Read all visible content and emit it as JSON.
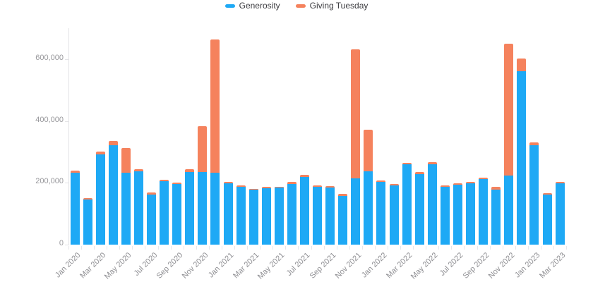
{
  "chart_data": {
    "type": "bar",
    "stacked": true,
    "title": "",
    "categories": [
      "Jan 2020",
      "Feb 2020",
      "Mar 2020",
      "Apr 2020",
      "May 2020",
      "Jun 2020",
      "Jul 2020",
      "Aug 2020",
      "Sep 2020",
      "Oct 2020",
      "Nov 2020",
      "Dec 2020",
      "Jan 2021",
      "Feb 2021",
      "Mar 2021",
      "Apr 2021",
      "May 2021",
      "Jun 2021",
      "Jul 2021",
      "Aug 2021",
      "Sep 2021",
      "Oct 2021",
      "Nov 2021",
      "Dec 2021",
      "Jan 2022",
      "Feb 2022",
      "Mar 2022",
      "Apr 2022",
      "May 2022",
      "Jun 2022",
      "Jul 2022",
      "Aug 2022",
      "Sep 2022",
      "Oct 2022",
      "Nov 2022",
      "Dec 2022",
      "Jan 2023",
      "Feb 2023",
      "Mar 2023"
    ],
    "series": [
      {
        "name": "Generosity",
        "color": "#1EA9F5",
        "values": [
          232000,
          146000,
          293000,
          322000,
          232000,
          238000,
          163000,
          205000,
          196000,
          234000,
          236000,
          232000,
          198000,
          187000,
          177000,
          182000,
          184000,
          197000,
          220000,
          186000,
          184000,
          157000,
          214000,
          237000,
          203000,
          192000,
          259000,
          229000,
          260000,
          186000,
          193000,
          199000,
          212000,
          179000,
          224000,
          560000,
          322000,
          161000,
          199000
        ]
      },
      {
        "name": "Giving Tuesday",
        "color": "#F5825D",
        "values": [
          8000,
          5000,
          7000,
          13000,
          80000,
          6000,
          5000,
          5000,
          5000,
          10000,
          147000,
          432000,
          6000,
          5000,
          4000,
          4000,
          4000,
          6000,
          5000,
          5000,
          5000,
          8000,
          418000,
          134000,
          5000,
          5000,
          6000,
          7000,
          7000,
          5000,
          5000,
          5000,
          5000,
          8000,
          426000,
          42000,
          8000,
          5000,
          5000
        ]
      }
    ],
    "x_tick_labels": [
      "Jan 2020",
      "Mar 2020",
      "May 2020",
      "Jul 2020",
      "Sep 2020",
      "Nov 2020",
      "Jan 2021",
      "Mar 2021",
      "May 2021",
      "Jul 2021",
      "Sep 2021",
      "Nov 2021",
      "Jan 2022",
      "Mar 2022",
      "May 2022",
      "Jul 2022",
      "Sep 2022",
      "Nov 2022",
      "Jan 2023",
      "Mar 2023"
    ],
    "y_tick_labels": [
      "0",
      "200,000",
      "400,000",
      "600,000"
    ],
    "y_tick_values": [
      0,
      200000,
      400000,
      600000
    ],
    "ylim": [
      0,
      700000
    ],
    "grid": false,
    "legend_position": "top-center"
  }
}
